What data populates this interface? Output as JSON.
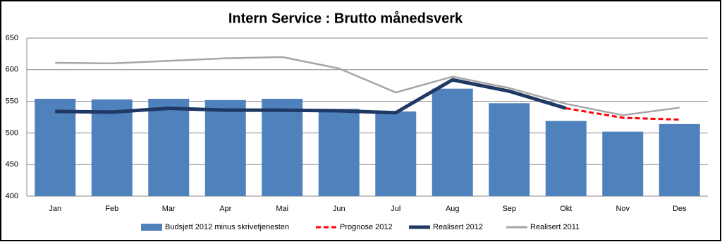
{
  "chart_data": {
    "type": "bar_line",
    "title": "Intern Service : Brutto månedsverk",
    "categories": [
      "Jan",
      "Feb",
      "Mar",
      "Apr",
      "Mai",
      "Jun",
      "Jul",
      "Aug",
      "Sep",
      "Okt",
      "Nov",
      "Des"
    ],
    "series": [
      {
        "name": "Budsjett 2012 minus skrivetjenesten",
        "type": "bar",
        "color": "#4f81bd",
        "values": [
          554,
          553,
          554,
          552,
          554,
          538,
          534,
          570,
          547,
          519,
          502,
          514
        ]
      },
      {
        "name": "Prognose 2012",
        "type": "line",
        "dashed": true,
        "color": "#ff0000",
        "values": [
          null,
          null,
          null,
          null,
          null,
          null,
          null,
          null,
          null,
          539,
          524,
          521
        ]
      },
      {
        "name": "Realisert 2012",
        "type": "line",
        "color": "#1f3864",
        "values": [
          534,
          533,
          539,
          536,
          536,
          535,
          532,
          584,
          566,
          539,
          null,
          null
        ]
      },
      {
        "name": "Realisert 2011",
        "type": "line",
        "color": "#a6a6a6",
        "values": [
          611,
          610,
          614,
          618,
          620,
          602,
          564,
          589,
          571,
          546,
          528,
          540
        ]
      }
    ],
    "ylim": [
      400,
      650
    ],
    "yticks": [
      400,
      450,
      500,
      550,
      600,
      650
    ],
    "grid": true,
    "legend": "bottom"
  }
}
